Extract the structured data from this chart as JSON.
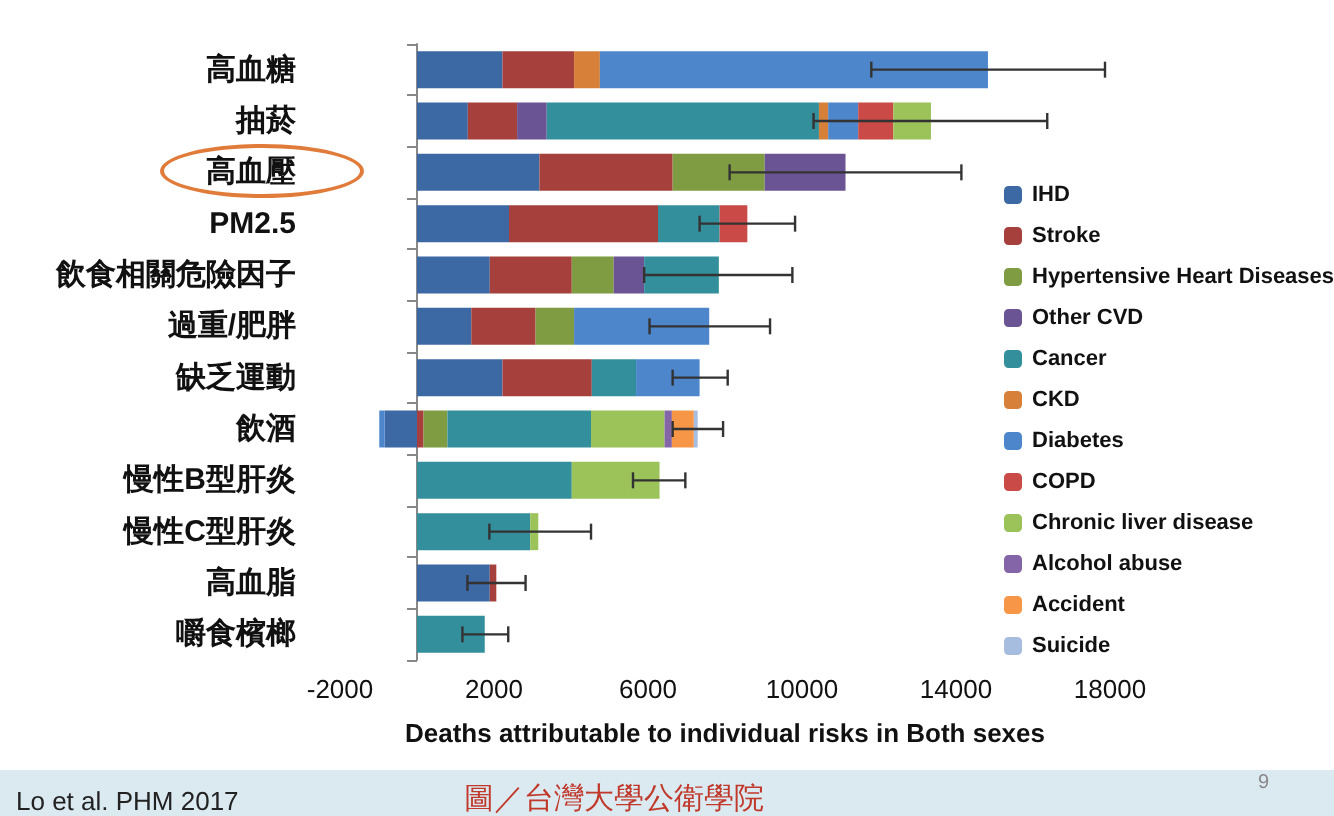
{
  "chart_data": {
    "type": "bar",
    "orientation": "horizontal",
    "stacked": true,
    "xlabel": "Deaths attributable to individual risks in Both sexes",
    "annotations": [
      "Lo et al. PHM 2017",
      "圖／台灣大學公衛學院",
      "9"
    ],
    "categories": [
      "高血糖",
      "抽菸",
      "高血壓",
      "PM2.5",
      "飲食相關危險因子",
      "過重/肥胖",
      "缺乏運動",
      "飲酒",
      "慢性B型肝炎",
      "慢性C型肝炎",
      "高血脂",
      "嚼食檳榔"
    ],
    "series": [
      {
        "name": "IHD",
        "color": "#3c69a4",
        "values": [
          2220,
          1320,
          3180,
          2390,
          1890,
          1410,
          2220,
          -840,
          null,
          null,
          1890,
          null
        ]
      },
      {
        "name": "Stroke",
        "color": "#a5403d",
        "values": [
          1860,
          1280,
          3460,
          3870,
          2130,
          1670,
          2320,
          170,
          null,
          null,
          170,
          null
        ],
        "errors": [
          null,
          null,
          null,
          null,
          null,
          null,
          null,
          null,
          null,
          null,
          [
            1310,
            2820
          ],
          null
        ]
      },
      {
        "name": "Hypertensive Heart Diseases",
        "color": "#7f9c43",
        "values": [
          null,
          null,
          2390,
          null,
          1090,
          1000,
          null,
          620,
          null,
          null,
          null,
          null
        ]
      },
      {
        "name": "Other CVD",
        "color": "#6b5493",
        "values": [
          null,
          770,
          2100,
          null,
          790,
          null,
          null,
          null,
          null,
          null,
          null,
          null
        ],
        "errors": [
          null,
          null,
          [
            8120,
            14140
          ],
          null,
          null,
          null,
          null,
          null,
          null,
          null,
          null,
          null
        ]
      },
      {
        "name": "Cancer",
        "color": "#348f9d",
        "values": [
          null,
          7070,
          null,
          1600,
          1940,
          null,
          1150,
          3730,
          4020,
          2940,
          null,
          1760
        ],
        "errors": [
          null,
          null,
          null,
          null,
          [
            5900,
            9750
          ],
          null,
          null,
          null,
          null,
          null,
          null,
          [
            1180,
            2370
          ]
        ]
      },
      {
        "name": "CKD",
        "color": "#d6803a",
        "values": [
          670,
          240,
          null,
          null,
          null,
          null,
          null,
          null,
          null,
          null,
          null,
          null
        ]
      },
      {
        "name": "Diabetes",
        "color": "#4e86cc",
        "values": [
          10080,
          780,
          null,
          null,
          null,
          3510,
          1650,
          -140,
          null,
          null,
          null,
          null
        ],
        "errors": [
          [
            11800,
            17870
          ],
          null,
          null,
          null,
          null,
          [
            6040,
            9170
          ],
          [
            6640,
            8070
          ],
          null,
          null,
          null,
          null,
          null
        ]
      },
      {
        "name": "COPD",
        "color": "#c94a46",
        "values": [
          null,
          910,
          null,
          720,
          null,
          null,
          null,
          null,
          null,
          null,
          null,
          null
        ],
        "errors": [
          null,
          null,
          null,
          [
            7340,
            9820
          ],
          null,
          null,
          null,
          null,
          null,
          null,
          null,
          null
        ]
      },
      {
        "name": "Chronic liver disease",
        "color": "#9cc25a",
        "values": [
          null,
          980,
          null,
          null,
          null,
          null,
          null,
          1910,
          2280,
          210,
          null,
          null
        ],
        "errors": [
          null,
          [
            10300,
            16370
          ],
          null,
          null,
          null,
          null,
          null,
          null,
          [
            5610,
            6970
          ],
          [
            1880,
            4520
          ],
          null,
          null
        ]
      },
      {
        "name": "Alcohol abuse",
        "color": "#8465a7",
        "values": [
          null,
          null,
          null,
          null,
          null,
          null,
          null,
          190,
          null,
          null,
          null,
          null
        ]
      },
      {
        "name": "Accident",
        "color": "#f79646",
        "values": [
          null,
          null,
          null,
          null,
          null,
          null,
          null,
          570,
          null,
          null,
          null,
          null
        ]
      },
      {
        "name": "Suicide",
        "color": "#a7bde0",
        "values": [
          null,
          null,
          null,
          null,
          null,
          null,
          null,
          100,
          null,
          null,
          null,
          null
        ],
        "errors": [
          null,
          null,
          null,
          null,
          null,
          null,
          null,
          [
            6640,
            7950
          ],
          null,
          null,
          null,
          null
        ]
      }
    ],
    "xlim": [
      -2000,
      18000
    ],
    "xticks": [
      -2000,
      2000,
      6000,
      10000,
      14000,
      18000
    ],
    "grid": false,
    "legend": "right"
  }
}
